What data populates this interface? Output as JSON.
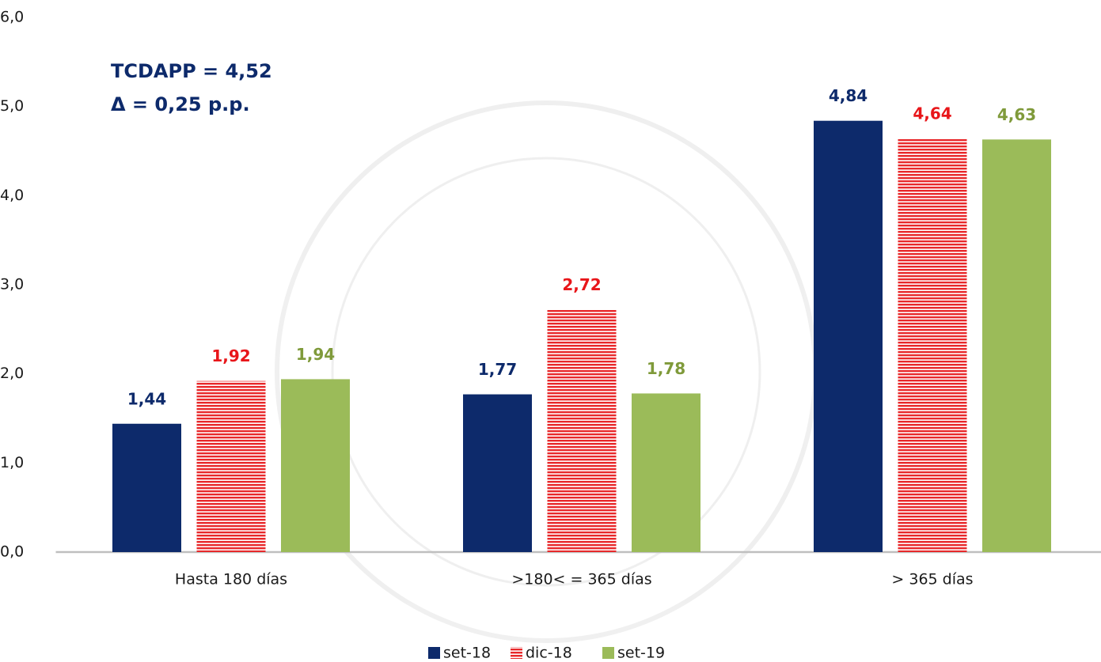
{
  "chart_data": {
    "type": "bar",
    "annotations": [
      "TCDAPP = 4,52",
      "Δ  = 0,25 p.p."
    ],
    "categories": [
      "Hasta 180 días",
      ">180< = 365 días",
      "> 365 días"
    ],
    "series": [
      {
        "name": "set-18",
        "color": "#0d2a6b",
        "label_color": "#0d2a6b",
        "pattern": "solid",
        "values": [
          1.44,
          1.77,
          4.84
        ],
        "value_labels": [
          "1,44",
          "1,77",
          "4,84"
        ]
      },
      {
        "name": "dic-18",
        "color": "#e8282a",
        "label_color": "#e8161a",
        "pattern": "horizontal-stripes",
        "values": [
          1.92,
          2.72,
          4.64
        ],
        "value_labels": [
          "1,92",
          "2,72",
          "4,64"
        ]
      },
      {
        "name": "set-19",
        "color": "#9bbb59",
        "label_color": "#7f9a3a",
        "pattern": "solid",
        "values": [
          1.94,
          1.78,
          4.63
        ],
        "value_labels": [
          "1,94",
          "1,78",
          "4,63"
        ]
      }
    ],
    "ylim": [
      0,
      6
    ],
    "yticks": [
      {
        "value": 0,
        "label": "0,0"
      },
      {
        "value": 1,
        "label": "1,0"
      },
      {
        "value": 2,
        "label": "2,0"
      },
      {
        "value": 3,
        "label": "3,0"
      },
      {
        "value": 4,
        "label": "4,0"
      },
      {
        "value": 5,
        "label": "5,0"
      },
      {
        "value": 6,
        "label": "6,0"
      }
    ],
    "grid": false,
    "legend": "bottom"
  }
}
